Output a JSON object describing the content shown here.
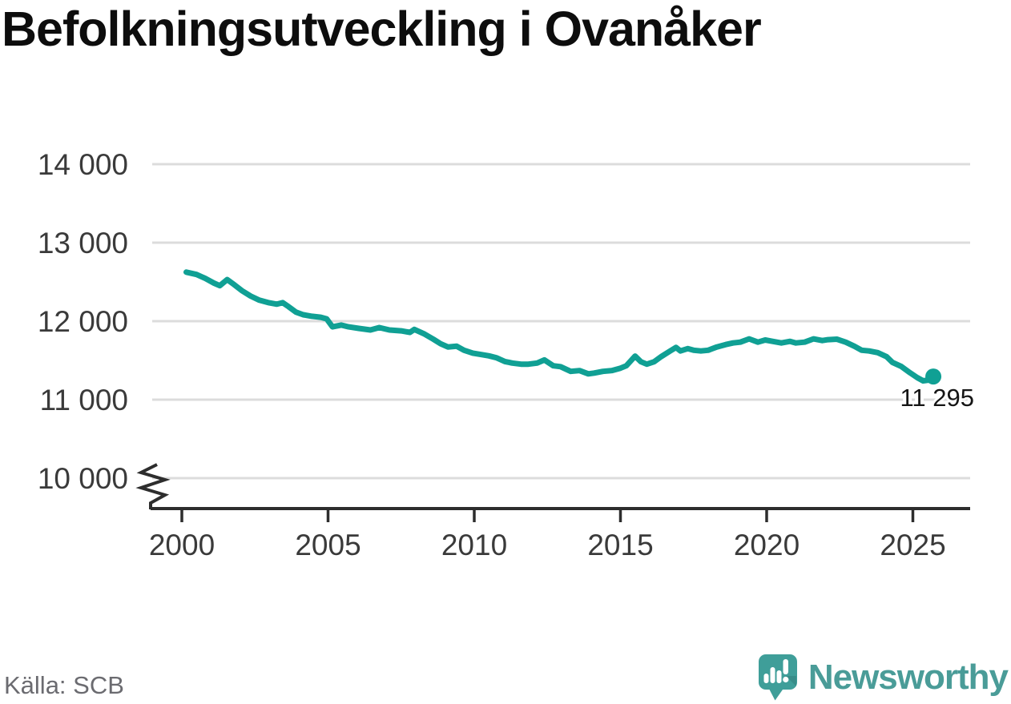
{
  "header": {
    "title": "Befolkningsutveckling i Ovanåker"
  },
  "footer": {
    "source": "Källa: SCB"
  },
  "branding": {
    "logo_text": "Newsworthy",
    "text_color": "#4a9c98",
    "mark_color": "#3f9e99"
  },
  "chart_data": {
    "type": "line",
    "title": "Befolkningsutveckling i Ovanåker",
    "xlabel": "",
    "ylabel": "",
    "x_ticks": [
      2000,
      2005,
      2010,
      2015,
      2020,
      2025
    ],
    "y_ticks": [
      14000,
      13000,
      12000,
      11000,
      10000
    ],
    "y_tick_labels": [
      "14 000",
      "13 000",
      "12 000",
      "11 000",
      "10 000"
    ],
    "xlim": [
      2000,
      2026
    ],
    "ylim": [
      10000,
      14000
    ],
    "grid": true,
    "axis_break_at_y": 10000,
    "legend": "none",
    "line_color": "#10a094",
    "grid_color": "#dcdcdc",
    "axis_color": "#2d2d2d",
    "end_point": {
      "x": 2025.7,
      "value": 11295,
      "label": "11 295"
    },
    "series": [
      {
        "points": [
          [
            2000.15,
            12625
          ],
          [
            2000.5,
            12595
          ],
          [
            2000.8,
            12545
          ],
          [
            2001.1,
            12485
          ],
          [
            2001.3,
            12452
          ],
          [
            2001.55,
            12530
          ],
          [
            2001.8,
            12462
          ],
          [
            2002.05,
            12390
          ],
          [
            2002.35,
            12320
          ],
          [
            2002.65,
            12267
          ],
          [
            2002.95,
            12237
          ],
          [
            2003.25,
            12216
          ],
          [
            2003.45,
            12236
          ],
          [
            2003.65,
            12185
          ],
          [
            2003.9,
            12115
          ],
          [
            2004.15,
            12082
          ],
          [
            2004.45,
            12062
          ],
          [
            2004.75,
            12050
          ],
          [
            2004.95,
            12030
          ],
          [
            2005.15,
            11928
          ],
          [
            2005.45,
            11950
          ],
          [
            2005.7,
            11928
          ],
          [
            2006.05,
            11908
          ],
          [
            2006.45,
            11888
          ],
          [
            2006.75,
            11918
          ],
          [
            2007.1,
            11888
          ],
          [
            2007.5,
            11877
          ],
          [
            2007.8,
            11857
          ],
          [
            2007.95,
            11895
          ],
          [
            2008.3,
            11836
          ],
          [
            2008.6,
            11770
          ],
          [
            2008.85,
            11712
          ],
          [
            2009.1,
            11671
          ],
          [
            2009.4,
            11681
          ],
          [
            2009.65,
            11630
          ],
          [
            2009.95,
            11593
          ],
          [
            2010.2,
            11578
          ],
          [
            2010.5,
            11558
          ],
          [
            2010.75,
            11535
          ],
          [
            2011.05,
            11486
          ],
          [
            2011.3,
            11466
          ],
          [
            2011.6,
            11452
          ],
          [
            2011.85,
            11452
          ],
          [
            2012.15,
            11466
          ],
          [
            2012.4,
            11506
          ],
          [
            2012.7,
            11432
          ],
          [
            2012.95,
            11420
          ],
          [
            2013.3,
            11360
          ],
          [
            2013.6,
            11370
          ],
          [
            2013.9,
            11329
          ],
          [
            2014.1,
            11339
          ],
          [
            2014.4,
            11360
          ],
          [
            2014.7,
            11370
          ],
          [
            2015.0,
            11401
          ],
          [
            2015.2,
            11432
          ],
          [
            2015.5,
            11555
          ],
          [
            2015.7,
            11483
          ],
          [
            2015.9,
            11452
          ],
          [
            2016.15,
            11483
          ],
          [
            2016.4,
            11550
          ],
          [
            2016.7,
            11620
          ],
          [
            2016.9,
            11665
          ],
          [
            2017.05,
            11620
          ],
          [
            2017.3,
            11650
          ],
          [
            2017.5,
            11630
          ],
          [
            2017.75,
            11620
          ],
          [
            2018.0,
            11630
          ],
          [
            2018.3,
            11671
          ],
          [
            2018.6,
            11702
          ],
          [
            2018.85,
            11722
          ],
          [
            2019.1,
            11733
          ],
          [
            2019.4,
            11775
          ],
          [
            2019.7,
            11733
          ],
          [
            2019.95,
            11760
          ],
          [
            2020.2,
            11743
          ],
          [
            2020.5,
            11722
          ],
          [
            2020.8,
            11743
          ],
          [
            2021.0,
            11722
          ],
          [
            2021.3,
            11733
          ],
          [
            2021.6,
            11775
          ],
          [
            2021.9,
            11753
          ],
          [
            2022.1,
            11764
          ],
          [
            2022.4,
            11770
          ],
          [
            2022.7,
            11733
          ],
          [
            2023.0,
            11681
          ],
          [
            2023.25,
            11630
          ],
          [
            2023.5,
            11620
          ],
          [
            2023.8,
            11599
          ],
          [
            2024.1,
            11548
          ],
          [
            2024.3,
            11476
          ],
          [
            2024.6,
            11425
          ],
          [
            2024.9,
            11343
          ],
          [
            2025.15,
            11281
          ],
          [
            2025.35,
            11240
          ],
          [
            2025.55,
            11250
          ],
          [
            2025.7,
            11295
          ]
        ]
      }
    ]
  }
}
